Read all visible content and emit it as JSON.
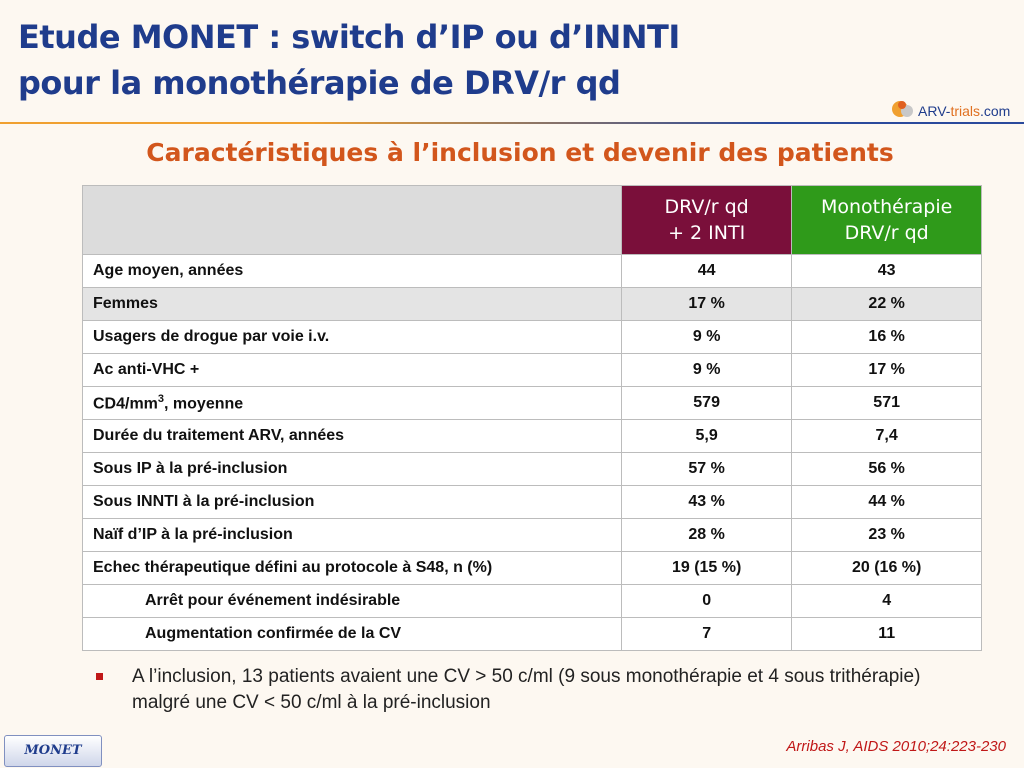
{
  "header": {
    "title_line1": "Etude MONET : switch d’IP ou d’INNTI",
    "title_line2": "pour la monothérapie de DRV/r qd",
    "logo_main": "ARV-",
    "logo_accent": "trials",
    "logo_suffix": ".com"
  },
  "subtitle": "Caractéristiques à l’inclusion et devenir des patients",
  "table": {
    "columns": [
      {
        "line1": "DRV/r qd",
        "line2": "+ 2 INTI"
      },
      {
        "line1": "Monothérapie",
        "line2": "DRV/r qd"
      }
    ],
    "rows": [
      {
        "label": "Age moyen, années",
        "a": "44",
        "b": "43"
      },
      {
        "label": "Femmes",
        "a": "17 %",
        "b": "22 %"
      },
      {
        "label": "Usagers de drogue par voie i.v.",
        "a": "9 %",
        "b": "16 %"
      },
      {
        "label": "Ac anti-VHC +",
        "a": "9 %",
        "b": "17 %"
      },
      {
        "label_pre": "CD4/mm",
        "label_sup": "3",
        "label_post": ", moyenne",
        "a": "579",
        "b": "571"
      },
      {
        "label": "Durée du traitement ARV, années",
        "a": "5,9",
        "b": "7,4"
      },
      {
        "label": "Sous IP à la pré-inclusion",
        "a": "57 %",
        "b": "56 %"
      },
      {
        "label": "Sous INNTI à la pré-inclusion",
        "a": "43 %",
        "b": "44 %"
      },
      {
        "label": "Naïf d’IP à la pré-inclusion",
        "a": "28 %",
        "b": "23 %"
      },
      {
        "label": "Echec thérapeutique défini au protocole à S48, n (%)",
        "a": "19 (15 %)",
        "b": "20 (16 %)"
      },
      {
        "label": "Arrêt pour événement indésirable",
        "a": "0",
        "b": "4"
      },
      {
        "label": "Augmentation confirmée de la CV",
        "a": "7",
        "b": "11"
      }
    ]
  },
  "bullet": "A l’inclusion, 13 patients avaient une CV > 50 c/ml (9 sous monothérapie et 4 sous trithérapie) malgré une CV < 50 c/ml à la pré-inclusion",
  "footer": {
    "badge": "MONET",
    "citation": "Arribas J, AIDS 2010;24:223-230"
  },
  "colors": {
    "title": "#1f3c8c",
    "subtitle": "#d2561c",
    "col_a_header": "#7a0f3a",
    "col_b_header": "#2f9a1a",
    "citation": "#c01818"
  }
}
